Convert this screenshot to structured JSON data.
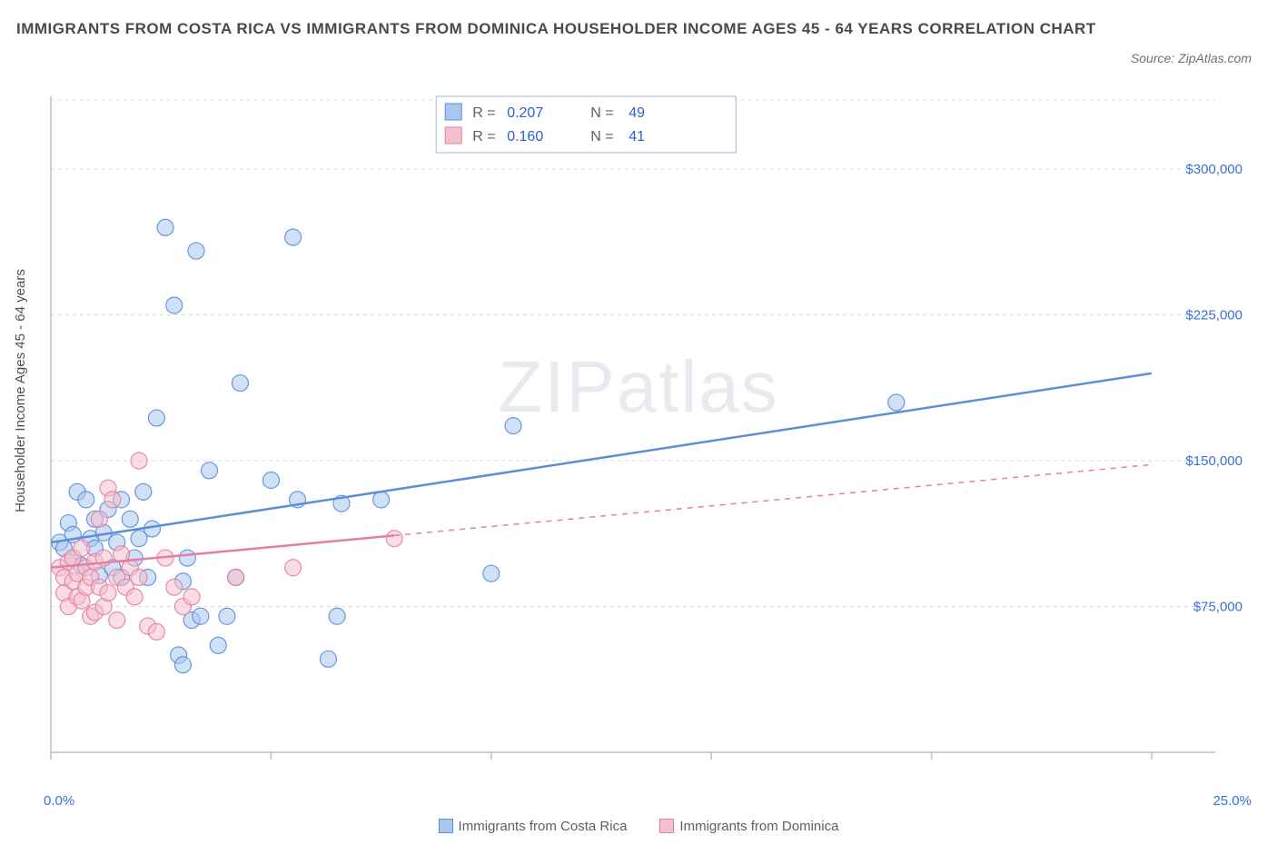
{
  "title": "IMMIGRANTS FROM COSTA RICA VS IMMIGRANTS FROM DOMINICA HOUSEHOLDER INCOME AGES 45 - 64 YEARS CORRELATION CHART",
  "source": "Source: ZipAtlas.com",
  "ylabel": "Householder Income Ages 45 - 64 years",
  "watermark_a": "ZIP",
  "watermark_b": "atlas",
  "chart": {
    "type": "scatter",
    "xlim": [
      0,
      25
    ],
    "ylim": [
      0,
      337500
    ],
    "xtick_major": [
      0,
      5,
      10,
      15,
      20,
      25
    ],
    "xtick_labels": {
      "0": "0.0%",
      "25": "25.0%"
    },
    "ytick_major": [
      75000,
      150000,
      225000,
      300000
    ],
    "ytick_labels": [
      "$75,000",
      "$150,000",
      "$225,000",
      "$300,000"
    ],
    "grid_color": "#d8d8d8",
    "axis_color": "#bfbfbf",
    "background_color": "#ffffff",
    "tick_label_color": "#3b6fd6",
    "marker_radius": 9,
    "marker_opacity": 0.55,
    "line_width": 2.5,
    "series": [
      {
        "name": "Immigrants from Costa Rica",
        "color_fill": "#a9c6ef",
        "color_stroke": "#5b8fd6",
        "R": "0.207",
        "N": "49",
        "trend": {
          "x1": 0,
          "y1": 108000,
          "x2": 25,
          "y2": 195000,
          "solid_until_x": 25
        },
        "points": [
          [
            0.2,
            108000
          ],
          [
            0.3,
            105000
          ],
          [
            0.4,
            118000
          ],
          [
            0.5,
            100000
          ],
          [
            0.5,
            112000
          ],
          [
            0.6,
            134000
          ],
          [
            0.7,
            96000
          ],
          [
            0.8,
            130000
          ],
          [
            0.9,
            110000
          ],
          [
            1.0,
            120000
          ],
          [
            1.0,
            105000
          ],
          [
            1.1,
            91000
          ],
          [
            1.2,
            113000
          ],
          [
            1.3,
            125000
          ],
          [
            1.4,
            95000
          ],
          [
            1.5,
            108000
          ],
          [
            1.6,
            130000
          ],
          [
            1.6,
            90000
          ],
          [
            1.8,
            120000
          ],
          [
            1.9,
            100000
          ],
          [
            2.0,
            110000
          ],
          [
            2.1,
            134000
          ],
          [
            2.2,
            90000
          ],
          [
            2.3,
            115000
          ],
          [
            2.4,
            172000
          ],
          [
            2.6,
            270000
          ],
          [
            2.8,
            230000
          ],
          [
            2.9,
            50000
          ],
          [
            3.0,
            45000
          ],
          [
            3.0,
            88000
          ],
          [
            3.1,
            100000
          ],
          [
            3.2,
            68000
          ],
          [
            3.3,
            258000
          ],
          [
            3.4,
            70000
          ],
          [
            3.6,
            145000
          ],
          [
            3.8,
            55000
          ],
          [
            4.0,
            70000
          ],
          [
            4.2,
            90000
          ],
          [
            4.3,
            190000
          ],
          [
            5.0,
            140000
          ],
          [
            5.5,
            265000
          ],
          [
            5.6,
            130000
          ],
          [
            6.3,
            48000
          ],
          [
            6.5,
            70000
          ],
          [
            6.6,
            128000
          ],
          [
            7.5,
            130000
          ],
          [
            10.0,
            92000
          ],
          [
            10.5,
            168000
          ],
          [
            19.2,
            180000
          ]
        ]
      },
      {
        "name": "Immigrants from Dominica",
        "color_fill": "#f4c0cd",
        "color_stroke": "#e47fa0",
        "R": "0.160",
        "N": "41",
        "trend": {
          "x1": 0,
          "y1": 95000,
          "x2": 25,
          "y2": 148000,
          "solid_until_x": 7.8
        },
        "points": [
          [
            0.2,
            95000
          ],
          [
            0.3,
            82000
          ],
          [
            0.3,
            90000
          ],
          [
            0.4,
            98000
          ],
          [
            0.4,
            75000
          ],
          [
            0.5,
            88000
          ],
          [
            0.5,
            100000
          ],
          [
            0.6,
            80000
          ],
          [
            0.6,
            92000
          ],
          [
            0.7,
            105000
          ],
          [
            0.7,
            78000
          ],
          [
            0.8,
            85000
          ],
          [
            0.8,
            95000
          ],
          [
            0.9,
            70000
          ],
          [
            0.9,
            90000
          ],
          [
            1.0,
            72000
          ],
          [
            1.0,
            98000
          ],
          [
            1.1,
            120000
          ],
          [
            1.1,
            85000
          ],
          [
            1.2,
            75000
          ],
          [
            1.2,
            100000
          ],
          [
            1.3,
            136000
          ],
          [
            1.3,
            82000
          ],
          [
            1.4,
            130000
          ],
          [
            1.5,
            90000
          ],
          [
            1.5,
            68000
          ],
          [
            1.6,
            102000
          ],
          [
            1.7,
            85000
          ],
          [
            1.8,
            95000
          ],
          [
            1.9,
            80000
          ],
          [
            2.0,
            150000
          ],
          [
            2.0,
            90000
          ],
          [
            2.2,
            65000
          ],
          [
            2.4,
            62000
          ],
          [
            2.6,
            100000
          ],
          [
            2.8,
            85000
          ],
          [
            3.0,
            75000
          ],
          [
            3.2,
            80000
          ],
          [
            4.2,
            90000
          ],
          [
            5.5,
            95000
          ],
          [
            7.8,
            110000
          ]
        ]
      }
    ],
    "stats_box": {
      "border_color": "#9fb8d8",
      "bg_color": "#ffffff",
      "label_color": "#606060",
      "value_color": "#2a62d4"
    },
    "bottom_legend": [
      {
        "label": "Immigrants from Costa Rica",
        "fill": "#a9c6ef",
        "stroke": "#5b8fd6"
      },
      {
        "label": "Immigrants from Dominica",
        "fill": "#f4c0cd",
        "stroke": "#e47fa0"
      }
    ]
  }
}
